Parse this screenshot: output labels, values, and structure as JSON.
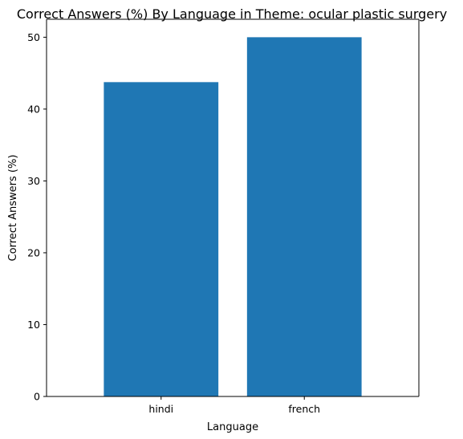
{
  "chart_data": {
    "type": "bar",
    "title": "Correct Answers (%) By Language in Theme: ocular plastic surgery",
    "xlabel": "Language",
    "ylabel": "Correct Answers (%)",
    "categories": [
      "hindi",
      "french"
    ],
    "values": [
      43.75,
      50.0
    ],
    "ylim": [
      0,
      52.5
    ],
    "yticks": [
      0,
      10,
      20,
      30,
      40,
      50
    ],
    "grid": false,
    "legend": "none",
    "bar_color": "#1f77b4"
  }
}
